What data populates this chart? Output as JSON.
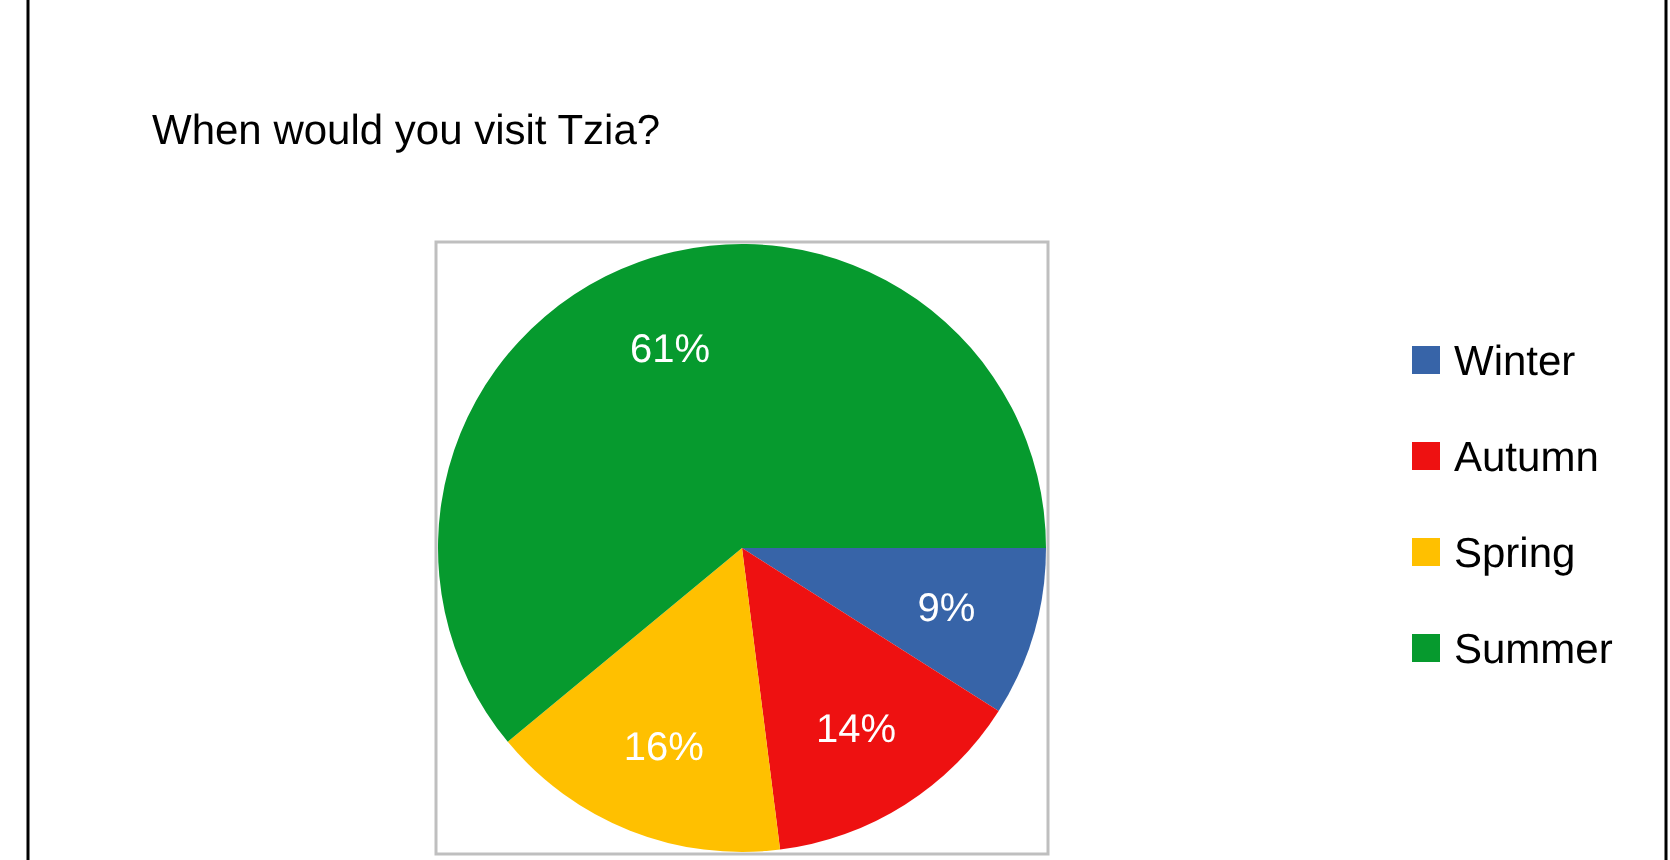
{
  "chart_data": {
    "type": "pie",
    "title": "When would you visit Tzia?",
    "categories": [
      "Winter",
      "Autumn",
      "Spring",
      "Summer"
    ],
    "values": [
      9,
      14,
      16,
      61
    ],
    "colors": [
      "#3764a8",
      "#ee1111",
      "#ffc000",
      "#069a2e"
    ],
    "value_labels": [
      "9%",
      "14%",
      "16%",
      "61%"
    ],
    "legend": "right"
  }
}
